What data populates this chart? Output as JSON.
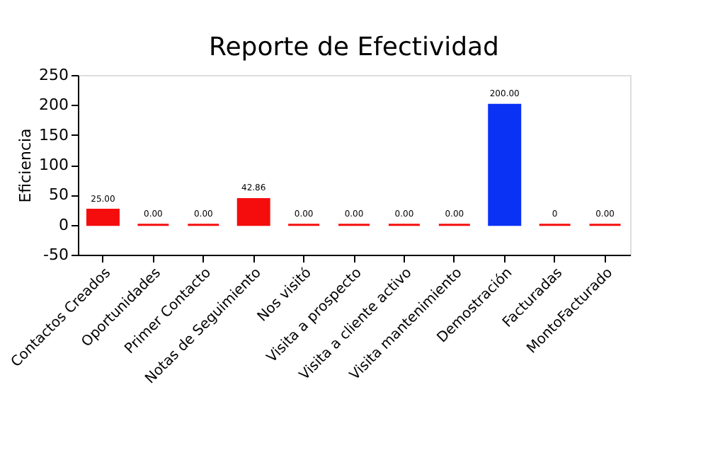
{
  "chart_data": {
    "type": "bar",
    "title": "Reporte de Efectividad",
    "ylabel": "Eficiencia",
    "categories": [
      "Contactos Creados",
      "Oportunidades",
      "Primer Contacto",
      "Notas de Seguimiento",
      "Nos visitó",
      "Visita a prospecto",
      "Visita a cliente activo",
      "Visita mantenimiento",
      "Demostración",
      "Facturadas",
      "MontoFacturado"
    ],
    "values": [
      25,
      0,
      0,
      42.86,
      0,
      0,
      0,
      0,
      200,
      0,
      0
    ],
    "value_labels": [
      "25.00",
      "0.00",
      "0.00",
      "42.86",
      "0.00",
      "0.00",
      "0.00",
      "0.00",
      "200.00",
      "0",
      "0.00"
    ],
    "colors": [
      "#f50d0d",
      "#f50d0d",
      "#f50d0d",
      "#f50d0d",
      "#f50d0d",
      "#f50d0d",
      "#f50d0d",
      "#f50d0d",
      "#0a32f5",
      "#f50d0d",
      "#f50d0d"
    ],
    "ylim": [
      -50,
      250
    ],
    "yticks": [
      -50,
      0,
      50,
      100,
      150,
      200,
      250
    ],
    "grid": false
  }
}
